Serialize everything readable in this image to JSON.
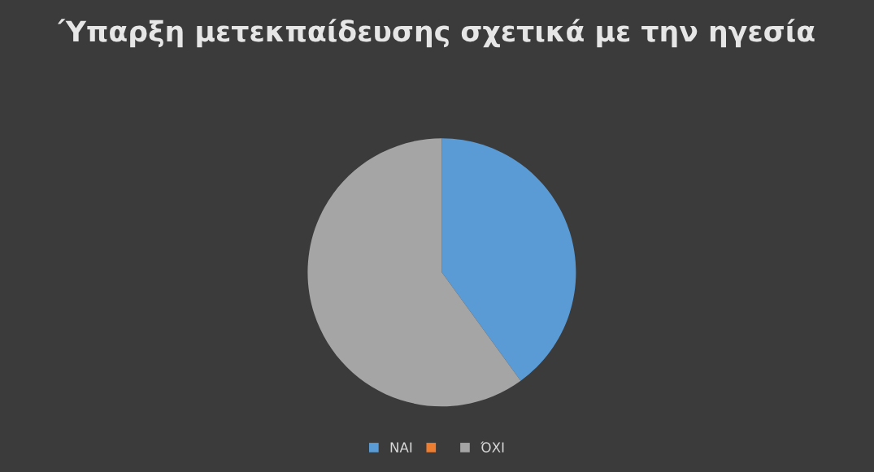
{
  "chart_data": {
    "type": "pie",
    "title": "Ύπαρξη μετεκπαίδευσης σχετικά με την ηγεσία",
    "categories": [
      "ΝΑΙ",
      null,
      "ΌΧΙ"
    ],
    "values": [
      40,
      0,
      60
    ],
    "colors": [
      "#5b9bd5",
      "#ed7d31",
      "#a5a5a5"
    ],
    "legend": "bottom"
  }
}
